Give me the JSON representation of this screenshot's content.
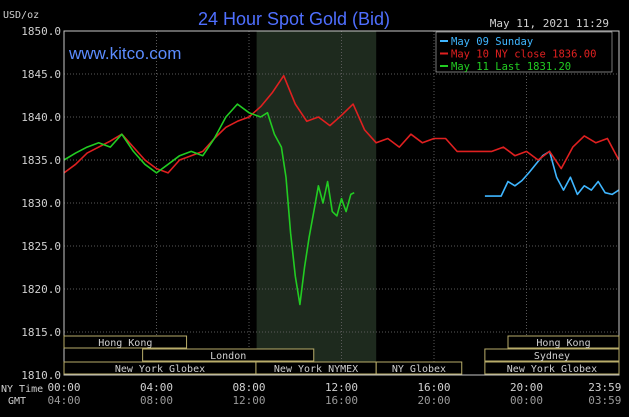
{
  "header": {
    "unit_label": "USD/oz",
    "title": "24 Hour Spot Gold (Bid)",
    "timestamp": "May 11, 2021 11:29",
    "watermark": "www.kitco.com"
  },
  "colors": {
    "background": "#000000",
    "frame": "#c8c8c8",
    "grid": "#5a5a5a",
    "nymex_band": "#1e2a1e",
    "title": "#4f6fff",
    "watermark": "#5b8cff",
    "sunday": "#3fb6ff",
    "ny_close": "#e02020",
    "last": "#22cc22",
    "text": "#d0d0d0",
    "session_box": "#b9ad6a"
  },
  "legend": {
    "items": [
      {
        "label": "May 09 Sunday",
        "color": "#3fb6ff"
      },
      {
        "label": "May 10 NY close 1836.00",
        "color": "#e02020"
      },
      {
        "label": "May 11 Last 1831.20",
        "color": "#22cc22"
      }
    ]
  },
  "axes": {
    "row_label_ny": "NY Time",
    "row_label_gmt": "GMT",
    "ny_ticks": [
      "00:00",
      "04:00",
      "08:00",
      "12:00",
      "16:00",
      "20:00",
      "23:59"
    ],
    "gmt_ticks": [
      "04:00",
      "08:00",
      "12:00",
      "16:00",
      "20:00",
      "00:00",
      "03:59"
    ]
  },
  "sessions": {
    "row1": [
      {
        "label": "Hong Kong"
      },
      {
        "label": "Hong Kong"
      }
    ],
    "row2": [
      {
        "label": "London"
      },
      {
        "label": "Sydney"
      }
    ],
    "row3": [
      {
        "label": "New York Globex"
      },
      {
        "label": "New York NYMEX"
      },
      {
        "label": "NY Globex"
      },
      {
        "label": "New York Globex"
      }
    ]
  },
  "chart_data": {
    "type": "line",
    "title": "24 Hour Spot Gold (Bid)",
    "ylabel": "USD/oz",
    "ylim": [
      1810,
      1850
    ],
    "y_ticks": [
      1810.0,
      1815.0,
      1820.0,
      1825.0,
      1830.0,
      1835.0,
      1840.0,
      1845.0,
      1850.0
    ],
    "x_unit": "hours (NY time)",
    "xlim": [
      0,
      24
    ],
    "grid": true,
    "legend_position": "top-right",
    "series": [
      {
        "name": "May 09 Sunday",
        "color": "#3fb6ff",
        "x": [
          18.2,
          18.6,
          18.9,
          19.2,
          19.5,
          19.8,
          20.1,
          20.4,
          20.7,
          21.0,
          21.3,
          21.6,
          21.9,
          22.2,
          22.5,
          22.8,
          23.1,
          23.4,
          23.7,
          23.99
        ],
        "y": [
          1830.8,
          1830.8,
          1830.8,
          1832.5,
          1832.0,
          1832.6,
          1833.5,
          1834.5,
          1835.5,
          1836.0,
          1833.0,
          1831.5,
          1833.0,
          1831.0,
          1832.0,
          1831.5,
          1832.5,
          1831.2,
          1831.0,
          1831.5
        ]
      },
      {
        "name": "May 10 NY close 1836.00",
        "color": "#e02020",
        "x": [
          0.0,
          0.5,
          1.0,
          1.5,
          2.0,
          2.5,
          3.0,
          3.5,
          4.0,
          4.5,
          5.0,
          5.5,
          6.0,
          6.5,
          7.0,
          7.5,
          8.0,
          8.5,
          9.0,
          9.5,
          10.0,
          10.5,
          11.0,
          11.5,
          12.0,
          12.5,
          13.0,
          13.5,
          14.0,
          14.5,
          15.0,
          15.5,
          16.0,
          16.5,
          17.0,
          17.5,
          18.0,
          18.5,
          19.0,
          19.5,
          20.0,
          20.5,
          21.0,
          21.5,
          22.0,
          22.5,
          23.0,
          23.5,
          23.99
        ],
        "y": [
          1833.5,
          1834.5,
          1835.8,
          1836.5,
          1837.2,
          1838.0,
          1836.5,
          1835.0,
          1834.0,
          1833.5,
          1835.0,
          1835.5,
          1836.0,
          1837.5,
          1838.8,
          1839.5,
          1840.0,
          1841.2,
          1842.8,
          1844.8,
          1841.5,
          1839.5,
          1840.0,
          1839.0,
          1840.2,
          1841.5,
          1838.5,
          1837.0,
          1837.5,
          1836.5,
          1838.0,
          1837.0,
          1837.5,
          1837.5,
          1836.0,
          1836.0,
          1836.0,
          1836.0,
          1836.5,
          1835.5,
          1836.0,
          1835.0,
          1836.0,
          1834.0,
          1836.5,
          1837.8,
          1837.0,
          1837.5,
          1835.0
        ]
      },
      {
        "name": "May 11 Last 1831.20",
        "color": "#22cc22",
        "x": [
          0.0,
          0.5,
          1.0,
          1.5,
          2.0,
          2.5,
          3.0,
          3.5,
          4.0,
          4.5,
          5.0,
          5.5,
          6.0,
          6.5,
          7.0,
          7.5,
          8.0,
          8.5,
          8.8,
          9.1,
          9.4,
          9.6,
          9.8,
          10.0,
          10.2,
          10.4,
          10.6,
          10.8,
          11.0,
          11.2,
          11.4,
          11.6,
          11.8,
          12.0,
          12.2,
          12.4,
          12.55
        ],
        "y": [
          1835.0,
          1835.8,
          1836.5,
          1837.0,
          1836.5,
          1838.0,
          1836.0,
          1834.5,
          1833.5,
          1834.5,
          1835.5,
          1836.0,
          1835.5,
          1837.5,
          1840.0,
          1841.5,
          1840.5,
          1840.0,
          1840.5,
          1838.0,
          1836.5,
          1833.0,
          1826.5,
          1821.5,
          1818.2,
          1822.5,
          1826.0,
          1829.0,
          1832.0,
          1830.0,
          1832.5,
          1829.0,
          1828.5,
          1830.5,
          1829.0,
          1831.0,
          1831.2
        ]
      }
    ]
  }
}
